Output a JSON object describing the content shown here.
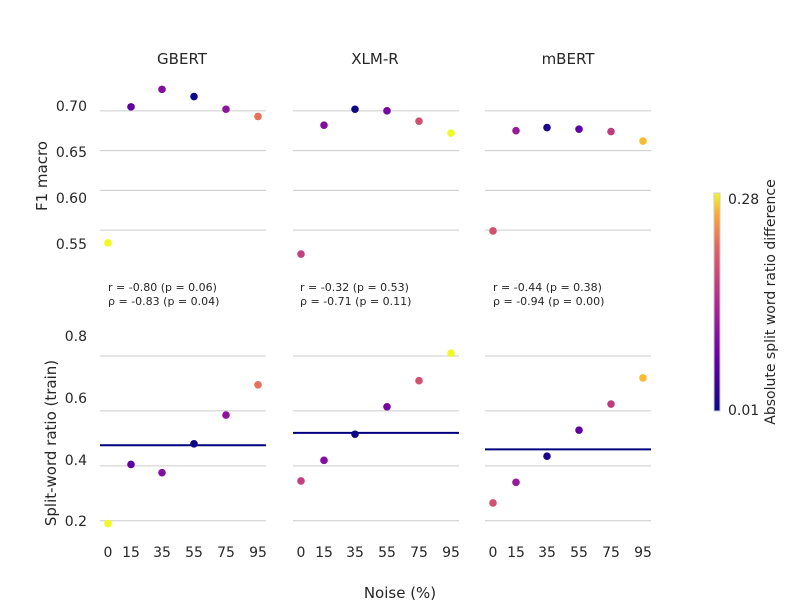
{
  "chart_data": {
    "type": "scatter",
    "x": [
      0,
      15,
      35,
      55,
      75,
      95
    ],
    "xlabel": "Noise (%)",
    "top_ylabel": "F1 macro",
    "bottom_ylabel": "Split-word ratio (train)",
    "top_ylim": [
      0.515,
      0.735
    ],
    "top_yticks": [
      0.55,
      0.6,
      0.65,
      0.7
    ],
    "top_ytick_labels": [
      "0.55",
      "0.60",
      "0.65",
      "0.70"
    ],
    "bottom_ylim": [
      0.13,
      0.92
    ],
    "bottom_yticks": [
      0.2,
      0.4,
      0.6,
      0.8
    ],
    "bottom_ytick_labels": [
      "0.2",
      "0.4",
      "0.6",
      "0.8"
    ],
    "colorbar": {
      "label": "Absolute split word ratio difference",
      "min": 0.01,
      "max": 0.28,
      "min_label": "0.01",
      "max_label": "0.28",
      "colormap": "plasma"
    },
    "grid": true,
    "panels": [
      {
        "title": "GBERT",
        "f1": [
          0.534,
          0.705,
          0.727,
          0.718,
          0.702,
          0.693
        ],
        "split_ratio": [
          0.19,
          0.405,
          0.375,
          0.48,
          0.585,
          0.695
        ],
        "baseline": 0.475,
        "diff": [
          0.28,
          0.07,
          0.1,
          0.01,
          0.11,
          0.22
        ],
        "annotations": [
          "r = -0.80 (p = 0.06)",
          "ρ = -0.83 (p = 0.04)"
        ]
      },
      {
        "title": "XLM-R",
        "f1": [
          0.52,
          0.682,
          0.702,
          0.7,
          0.687,
          0.672
        ],
        "split_ratio": [
          0.345,
          0.42,
          0.515,
          0.615,
          0.71,
          0.81
        ],
        "baseline": 0.52,
        "diff": [
          0.17,
          0.1,
          0.01,
          0.09,
          0.19,
          0.29
        ],
        "annotations": [
          "r = -0.32 (p = 0.53)",
          "ρ = -0.71 (p = 0.11)"
        ]
      },
      {
        "title": "mBERT",
        "f1": [
          0.549,
          0.675,
          0.679,
          0.677,
          0.674,
          0.662
        ],
        "split_ratio": [
          0.265,
          0.34,
          0.435,
          0.53,
          0.625,
          0.72
        ],
        "baseline": 0.46,
        "diff": [
          0.19,
          0.12,
          0.02,
          0.07,
          0.165,
          0.26
        ],
        "annotations": [
          "r = -0.44 (p = 0.38)",
          "ρ = -0.94 (p = 0.00)"
        ]
      }
    ]
  },
  "colors": {
    "baseline": "#00007f",
    "grid": "#cccccc",
    "text": "#262626"
  }
}
